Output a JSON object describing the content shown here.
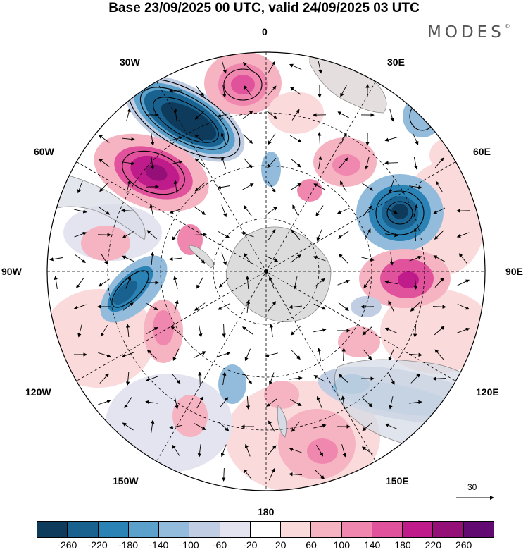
{
  "title": "Base 23/09/2025 00 UTC, valid 24/09/2025 03 UTC",
  "brand": "MODES",
  "brand_mark": "©",
  "longitude_labels": {
    "top": "0",
    "ne": "30E",
    "nw": "30W",
    "e60": "60E",
    "w60": "60W",
    "e90": "90E",
    "w90": "90W",
    "e120": "120E",
    "w120": "120W",
    "e150": "150E",
    "w150": "150W",
    "bottom": "180"
  },
  "vector_reference": "30",
  "colorbar": {
    "colors": [
      "#0e3b5c",
      "#19628f",
      "#2a82b5",
      "#5ba1cb",
      "#93bcdc",
      "#c0cde3",
      "#e4e4f0",
      "#ffffff",
      "#fadada",
      "#f6b3c1",
      "#f087ae",
      "#e0529c",
      "#c01b8a",
      "#941078",
      "#620a72"
    ],
    "ticks": [
      "-260",
      "-220",
      "-180",
      "-140",
      "-100",
      "-60",
      "-20",
      "20",
      "60",
      "100",
      "140",
      "180",
      "220",
      "260"
    ]
  },
  "anomaly_centers": [
    {
      "name": "atlantic-low",
      "sign": "negative",
      "level": -260
    },
    {
      "name": "atlantic-high",
      "sign": "positive",
      "level": 220
    },
    {
      "name": "south-america-high",
      "sign": "positive",
      "level": 180
    },
    {
      "name": "indian-ocean-low",
      "sign": "negative",
      "level": -220
    },
    {
      "name": "indian-ocean-high",
      "sign": "positive",
      "level": 180
    },
    {
      "name": "southeast-pacific-low",
      "sign": "negative",
      "level": -180
    },
    {
      "name": "australia-low",
      "sign": "negative",
      "level": -140
    },
    {
      "name": "tasman-high",
      "sign": "positive",
      "level": 140
    }
  ]
}
